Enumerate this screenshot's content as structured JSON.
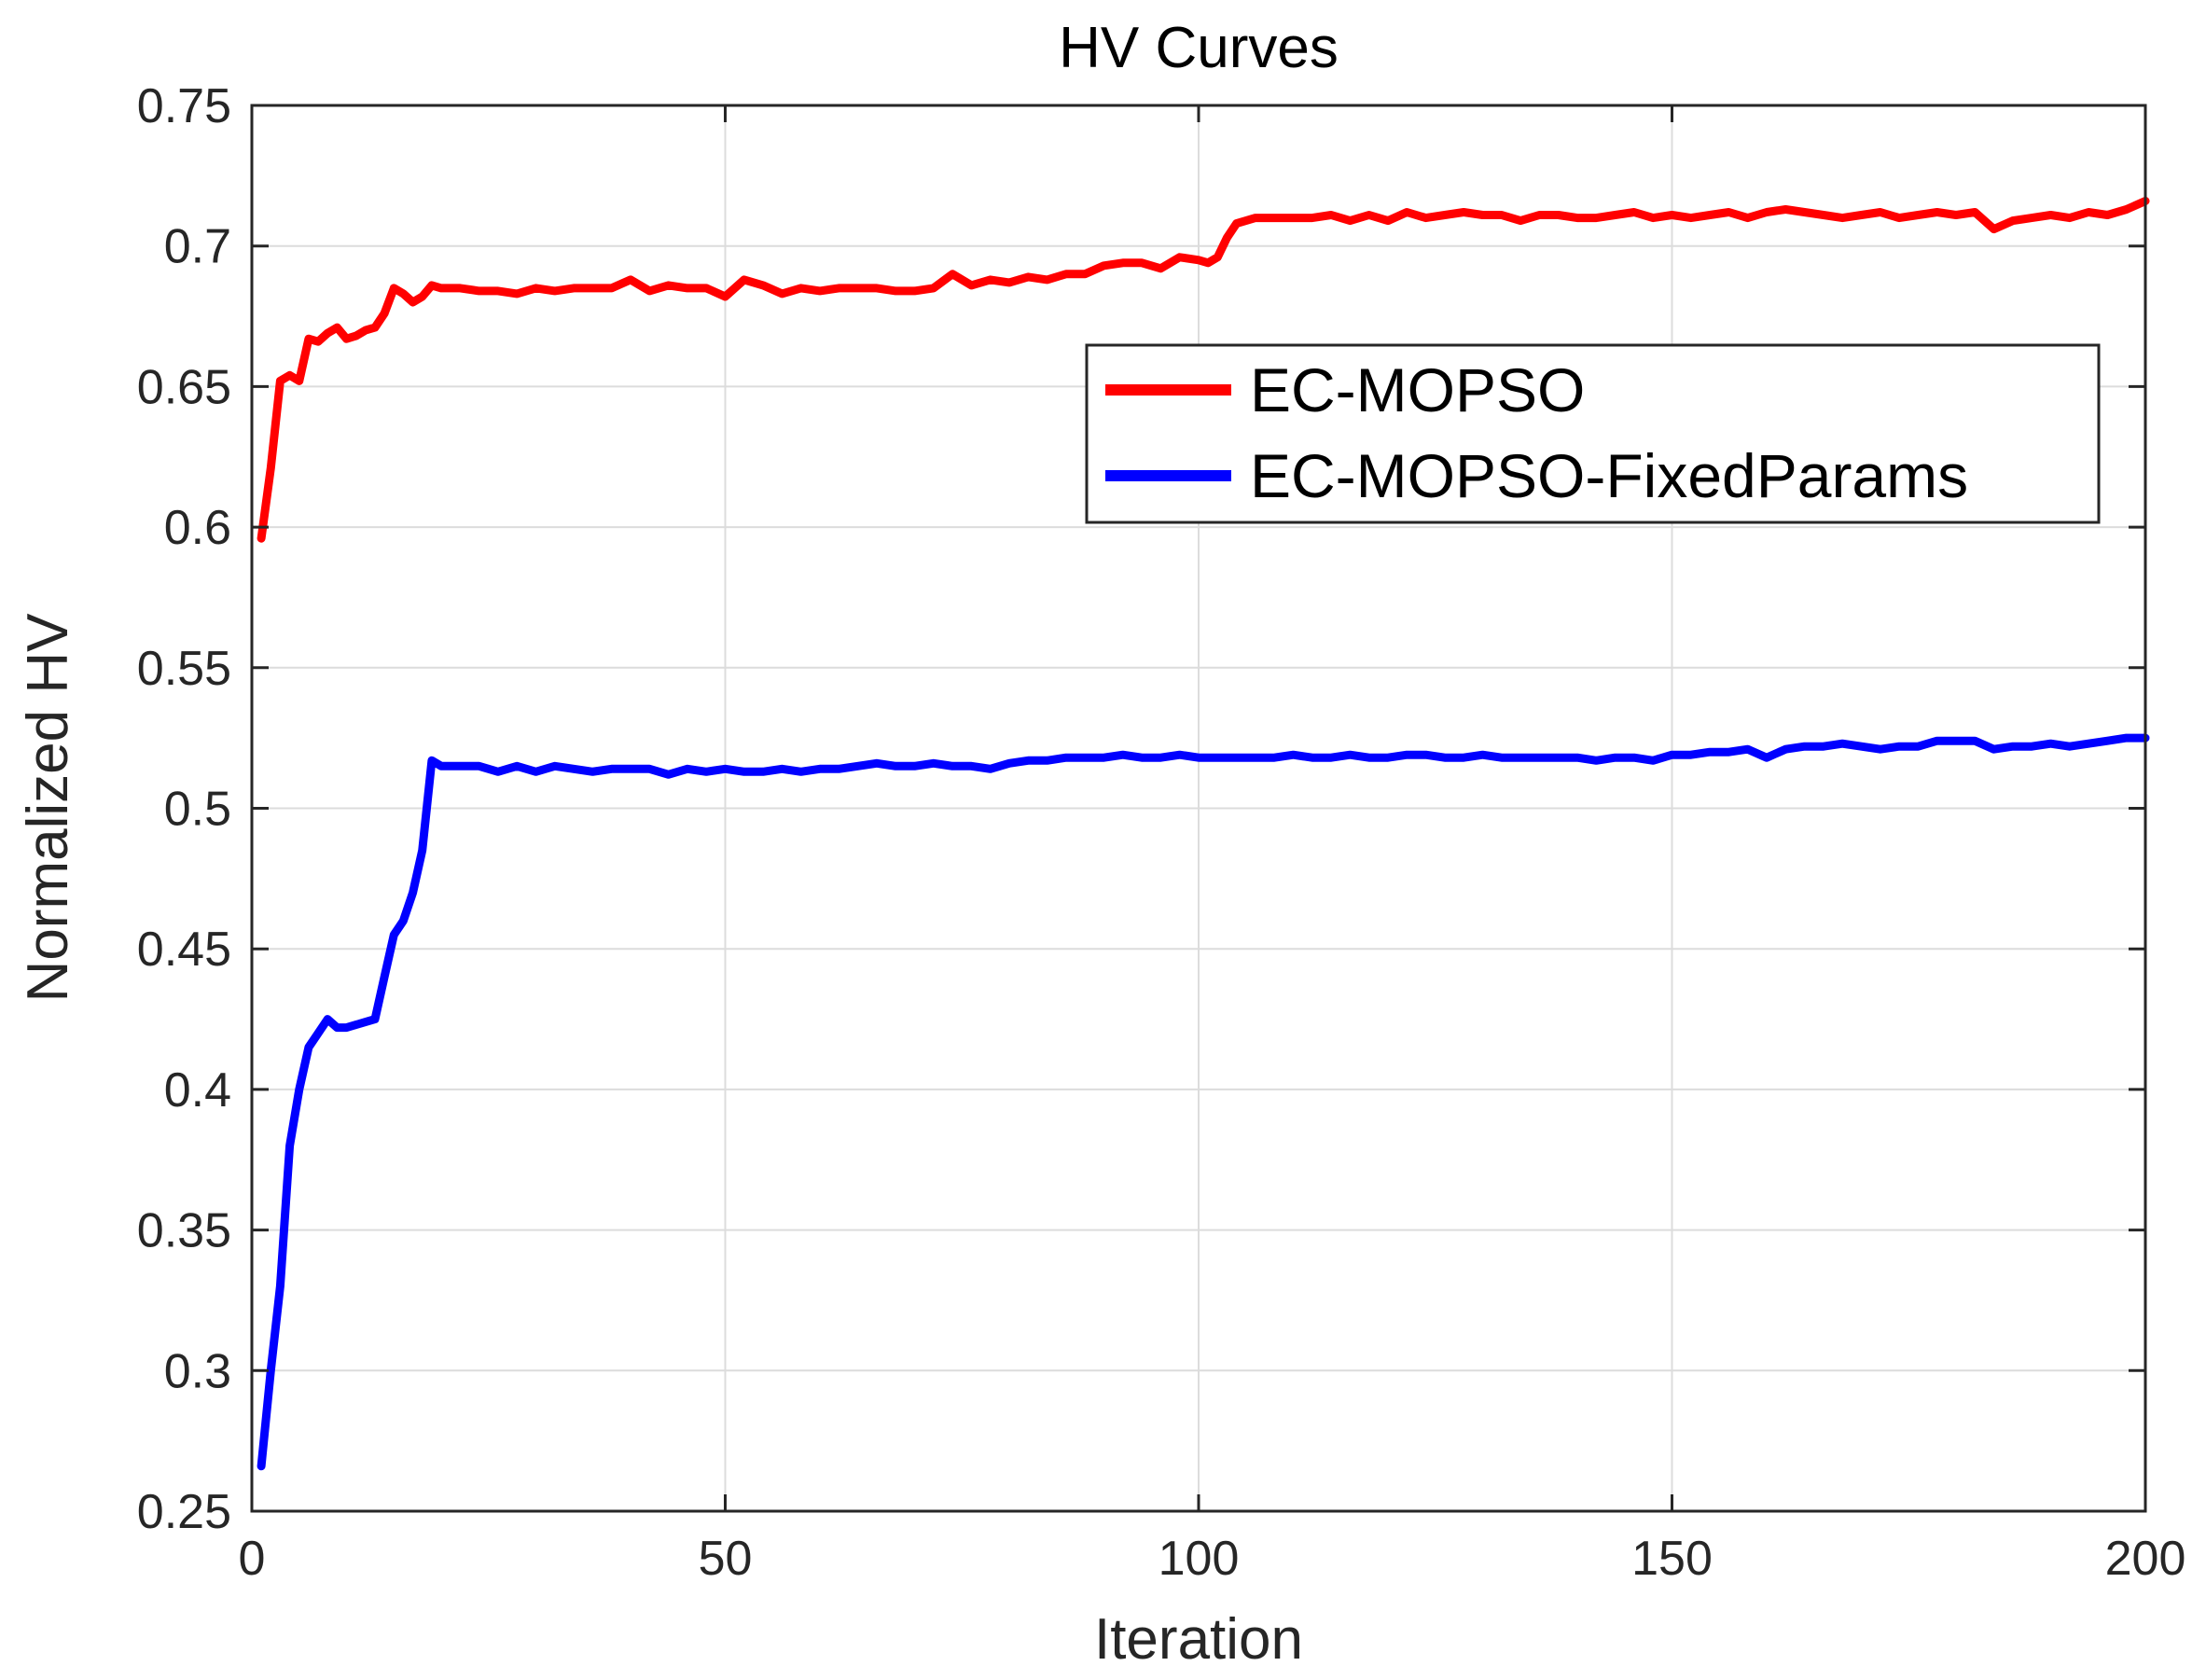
{
  "chart_data": {
    "type": "line",
    "title": "HV Curves",
    "xlabel": "Iteration",
    "ylabel": "Normalized HV",
    "xlim": [
      0,
      200
    ],
    "ylim": [
      0.25,
      0.75
    ],
    "xticks": [
      0,
      50,
      100,
      150,
      200
    ],
    "yticks": [
      0.25,
      0.3,
      0.35,
      0.4,
      0.45,
      0.5,
      0.55,
      0.6,
      0.65,
      0.7,
      0.75
    ],
    "xtick_labels": [
      "0",
      "50",
      "100",
      "150",
      "200"
    ],
    "ytick_labels": [
      "0.25",
      "0.3",
      "0.35",
      "0.4",
      "0.45",
      "0.5",
      "0.55",
      "0.6",
      "0.65",
      "0.7",
      "0.75"
    ],
    "grid": true,
    "legend_position": "top-right",
    "series": [
      {
        "name": "EC-MOPSO",
        "color": "#ff0000",
        "x": [
          1,
          2,
          3,
          4,
          5,
          6,
          7,
          8,
          9,
          10,
          11,
          12,
          13,
          14,
          15,
          16,
          17,
          18,
          19,
          20,
          22,
          24,
          26,
          28,
          30,
          32,
          34,
          36,
          38,
          40,
          42,
          44,
          46,
          48,
          50,
          52,
          54,
          56,
          58,
          60,
          62,
          64,
          66,
          68,
          70,
          72,
          74,
          76,
          78,
          80,
          82,
          84,
          86,
          88,
          90,
          92,
          94,
          96,
          98,
          100,
          101,
          102,
          103,
          104,
          106,
          108,
          110,
          112,
          114,
          116,
          118,
          120,
          122,
          124,
          126,
          128,
          130,
          132,
          134,
          136,
          138,
          140,
          142,
          144,
          146,
          148,
          150,
          152,
          154,
          156,
          158,
          160,
          162,
          164,
          166,
          168,
          170,
          172,
          174,
          176,
          178,
          180,
          182,
          184,
          186,
          188,
          190,
          192,
          194,
          196,
          198,
          200
        ],
        "y": [
          0.596,
          0.621,
          0.652,
          0.654,
          0.652,
          0.667,
          0.666,
          0.669,
          0.671,
          0.667,
          0.668,
          0.67,
          0.671,
          0.676,
          0.685,
          0.683,
          0.68,
          0.682,
          0.686,
          0.685,
          0.685,
          0.684,
          0.684,
          0.683,
          0.685,
          0.684,
          0.685,
          0.685,
          0.685,
          0.688,
          0.684,
          0.686,
          0.685,
          0.685,
          0.682,
          0.688,
          0.686,
          0.683,
          0.685,
          0.684,
          0.685,
          0.685,
          0.685,
          0.684,
          0.684,
          0.685,
          0.69,
          0.686,
          0.688,
          0.687,
          0.689,
          0.688,
          0.69,
          0.69,
          0.693,
          0.694,
          0.694,
          0.692,
          0.696,
          0.695,
          0.694,
          0.696,
          0.703,
          0.708,
          0.71,
          0.71,
          0.71,
          0.71,
          0.711,
          0.709,
          0.711,
          0.709,
          0.712,
          0.71,
          0.711,
          0.712,
          0.711,
          0.711,
          0.709,
          0.711,
          0.711,
          0.71,
          0.71,
          0.711,
          0.712,
          0.71,
          0.711,
          0.71,
          0.711,
          0.712,
          0.71,
          0.712,
          0.713,
          0.712,
          0.711,
          0.71,
          0.711,
          0.712,
          0.71,
          0.711,
          0.712,
          0.711,
          0.712,
          0.706,
          0.709,
          0.71,
          0.711,
          0.71,
          0.712,
          0.711,
          0.713,
          0.716
        ]
      },
      {
        "name": "EC-MOPSO-FixedParams",
        "color": "#0000ff",
        "x": [
          1,
          2,
          3,
          4,
          5,
          6,
          7,
          8,
          9,
          10,
          11,
          12,
          13,
          14,
          15,
          16,
          17,
          18,
          19,
          20,
          22,
          24,
          26,
          28,
          30,
          32,
          34,
          36,
          38,
          40,
          42,
          44,
          46,
          48,
          50,
          52,
          54,
          56,
          58,
          60,
          62,
          64,
          66,
          68,
          70,
          72,
          74,
          76,
          78,
          80,
          82,
          84,
          86,
          88,
          90,
          92,
          94,
          96,
          98,
          100,
          102,
          104,
          106,
          108,
          110,
          112,
          114,
          116,
          118,
          120,
          122,
          124,
          126,
          128,
          130,
          132,
          134,
          136,
          138,
          140,
          142,
          144,
          146,
          148,
          150,
          152,
          154,
          156,
          158,
          160,
          162,
          164,
          166,
          168,
          170,
          172,
          174,
          176,
          178,
          180,
          182,
          184,
          186,
          188,
          190,
          192,
          194,
          196,
          198,
          200
        ],
        "y": [
          0.266,
          0.3,
          0.33,
          0.38,
          0.4,
          0.415,
          0.42,
          0.425,
          0.422,
          0.422,
          0.423,
          0.424,
          0.425,
          0.44,
          0.455,
          0.46,
          0.47,
          0.485,
          0.517,
          0.515,
          0.515,
          0.515,
          0.513,
          0.515,
          0.513,
          0.515,
          0.514,
          0.513,
          0.514,
          0.514,
          0.514,
          0.512,
          0.514,
          0.513,
          0.514,
          0.513,
          0.513,
          0.514,
          0.513,
          0.514,
          0.514,
          0.515,
          0.516,
          0.515,
          0.515,
          0.516,
          0.515,
          0.515,
          0.514,
          0.516,
          0.517,
          0.517,
          0.518,
          0.518,
          0.518,
          0.519,
          0.518,
          0.518,
          0.519,
          0.518,
          0.518,
          0.518,
          0.518,
          0.518,
          0.519,
          0.518,
          0.518,
          0.519,
          0.518,
          0.518,
          0.519,
          0.519,
          0.518,
          0.518,
          0.519,
          0.518,
          0.518,
          0.518,
          0.518,
          0.518,
          0.517,
          0.518,
          0.518,
          0.517,
          0.519,
          0.519,
          0.52,
          0.52,
          0.521,
          0.518,
          0.521,
          0.522,
          0.522,
          0.523,
          0.522,
          0.521,
          0.522,
          0.522,
          0.524,
          0.524,
          0.524,
          0.521,
          0.522,
          0.522,
          0.523,
          0.522,
          0.523,
          0.524,
          0.525,
          0.525
        ]
      }
    ]
  }
}
